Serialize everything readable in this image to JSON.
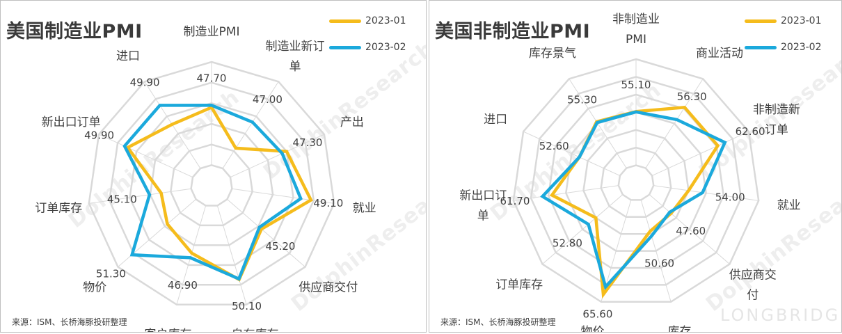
{
  "colors": {
    "series1": "#F5BC1C",
    "series2": "#1BA9DC",
    "grid": "#d9d9d9",
    "text": "#404040"
  },
  "watermark": "DolphinResearch",
  "logo": "LONGBRIDGE",
  "chart_data": [
    {
      "type": "radar",
      "title": "美国制造业PMI",
      "source": "来源：ISM、长桥海豚投研整理",
      "categories": [
        "制造业PMI",
        "制造业新订单",
        "产出",
        "就业",
        "供应商交付",
        "自有库存",
        "客户库存",
        "物价",
        "订单库存",
        "新出口订单",
        "进口"
      ],
      "category_lines": [
        [
          "制造业PMI"
        ],
        [
          "制造业新订",
          "单"
        ],
        [
          "产出"
        ],
        [
          "就业"
        ],
        [
          "供应商交付"
        ],
        [
          "自有库存"
        ],
        [
          "客户库存"
        ],
        [
          "物价"
        ],
        [
          "订单库存"
        ],
        [
          "新出口订单"
        ],
        [
          "进口"
        ]
      ],
      "series": [
        {
          "name": "2023-01",
          "values": [
            47.4,
            42.5,
            48.0,
            50.6,
            45.6,
            50.2,
            46.2,
            44.5,
            43.4,
            49.4,
            46.6
          ]
        },
        {
          "name": "2023-02",
          "values": [
            47.7,
            47.0,
            47.3,
            49.1,
            45.2,
            50.1,
            46.9,
            51.3,
            45.1,
            49.9,
            49.9
          ]
        }
      ],
      "data_labels": [
        "47.70",
        "47.00",
        "47.30",
        "49.10",
        "45.20",
        "50.10",
        "46.90",
        "51.30",
        "45.10",
        "49.90",
        "49.90"
      ],
      "grid_levels": [
        36,
        39,
        42,
        45,
        48,
        51,
        54
      ],
      "legend_position": "top-right"
    },
    {
      "type": "radar",
      "title": "美国非制造业PMI",
      "source": "来源：ISM、长桥海豚投研整理",
      "categories": [
        "非制造业PMI",
        "商业活动",
        "非制造新订单",
        "就业",
        "供应商交付",
        "库存",
        "物价",
        "订单库存",
        "新出口订单",
        "进口",
        "库存景气"
      ],
      "category_lines": [
        [
          "非制造业",
          "PMI"
        ],
        [
          "商业活动"
        ],
        [
          "非制造新",
          "订单"
        ],
        [
          "就业"
        ],
        [
          "供应商交",
          "付"
        ],
        [
          "库存"
        ],
        [
          "物价"
        ],
        [
          "订单库存"
        ],
        [
          "新出口订",
          "单"
        ],
        [
          "进口"
        ],
        [
          "库存景气"
        ]
      ],
      "series": [
        {
          "name": "2023-01",
          "values": [
            55.2,
            60.4,
            60.4,
            50.0,
            48.1,
            49.2,
            67.8,
            50.0,
            59.0,
            52.6,
            55.6
          ]
        },
        {
          "name": "2023-02",
          "values": [
            55.1,
            56.3,
            62.6,
            54.0,
            47.6,
            50.6,
            65.6,
            52.8,
            61.7,
            52.6,
            55.3
          ]
        }
      ],
      "data_labels": [
        "55.10",
        "56.30",
        "62.60",
        "54.00",
        "47.60",
        "50.60",
        "65.60",
        "52.80",
        "61.70",
        "52.60",
        "55.30"
      ],
      "grid_levels": [
        35,
        40,
        45,
        50,
        55,
        60,
        65,
        70
      ],
      "legend_position": "top-right"
    }
  ]
}
